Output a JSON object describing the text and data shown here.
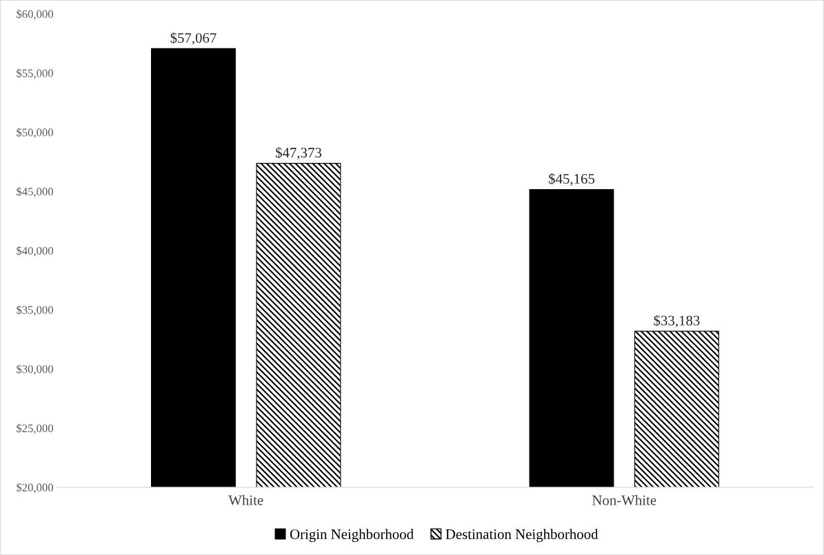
{
  "chart_data": {
    "type": "bar",
    "categories": [
      "White",
      "Non-White"
    ],
    "series": [
      {
        "name": "Origin Neighborhood",
        "color": "#000000",
        "values": [
          57067,
          45165
        ],
        "value_labels": [
          "$57,067",
          "$45,165"
        ]
      },
      {
        "name": "Destination Neighborhood",
        "color": "#000000",
        "values": [
          47373,
          33183
        ],
        "value_labels": [
          "$47,373",
          "$33,183"
        ]
      }
    ],
    "ylim": [
      20000,
      60000
    ],
    "yticks": [
      {
        "value": 20000,
        "label": "$20,000"
      },
      {
        "value": 25000,
        "label": "$25,000"
      },
      {
        "value": 30000,
        "label": "$30,000"
      },
      {
        "value": 35000,
        "label": "$35,000"
      },
      {
        "value": 40000,
        "label": "$40,000"
      },
      {
        "value": 45000,
        "label": "$45,000"
      },
      {
        "value": 50000,
        "label": "$50,000"
      },
      {
        "value": 55000,
        "label": "$55,000"
      },
      {
        "value": 60000,
        "label": "$60,000"
      }
    ],
    "grid": false,
    "legend": "bottom"
  }
}
